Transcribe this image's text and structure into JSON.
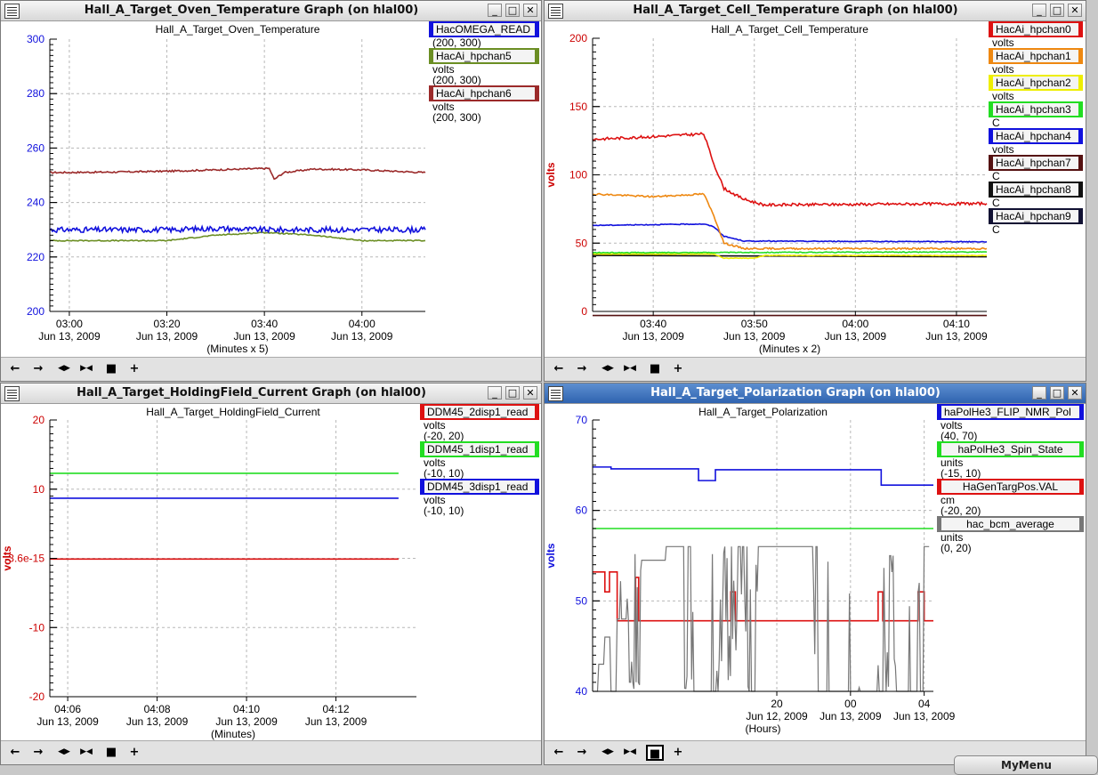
{
  "windows": [
    {
      "id": "oven",
      "title": "Hall_A_Target_Oven_Temperature Graph (on hlal00)",
      "active": false,
      "toolbar_pressed": -1,
      "legend": [
        {
          "name": "HacOMEGA_READ",
          "color": "#1111dd",
          "lines": [
            "(200, 300)"
          ]
        },
        {
          "name": "HacAi_hpchan5",
          "color": "#6b8e23",
          "lines": [
            "volts",
            "(200, 300)"
          ]
        },
        {
          "name": "HacAi_hpchan6",
          "color": "#9b2a2a",
          "lines": [
            "volts",
            "(200, 300)"
          ]
        }
      ],
      "chart_data": {
        "type": "line",
        "title": "Hall_A_Target_Oven_Temperature",
        "xlabel": "(Minutes x 5)",
        "ylabel": "",
        "ylim": [
          200,
          300
        ],
        "yticks": [
          200,
          220,
          240,
          260,
          280,
          300
        ],
        "xlim": [
          "02:56",
          "04:13"
        ],
        "xticks": [
          {
            "t": "03:00",
            "label": "03:00",
            "date": "Jun 13, 2009"
          },
          {
            "t": "03:20",
            "label": "03:20",
            "date": "Jun 13, 2009"
          },
          {
            "t": "03:40",
            "label": "03:40",
            "date": "Jun 13, 2009"
          },
          {
            "t": "04:00",
            "label": "04:00",
            "date": "Jun 13, 2009"
          }
        ],
        "grid": true,
        "series": [
          {
            "color": "#9b2a2a",
            "noise": 0.3,
            "points": [
              [
                "02:56",
                251.0
              ],
              [
                "03:10",
                251.2
              ],
              [
                "03:20",
                251.5
              ],
              [
                "03:30",
                252.0
              ],
              [
                "03:40",
                252.5
              ],
              [
                "03:41",
                252.5
              ],
              [
                "03:42",
                248.5
              ],
              [
                "03:44",
                251.0
              ],
              [
                "03:50",
                252.3
              ],
              [
                "04:00",
                252.0
              ],
              [
                "04:13",
                251.0
              ]
            ]
          },
          {
            "color": "#6b8e23",
            "noise": 0.2,
            "points": [
              [
                "02:56",
                226.0
              ],
              [
                "03:20",
                226.0
              ],
              [
                "03:30",
                228.0
              ],
              [
                "03:40",
                229.0
              ],
              [
                "03:50",
                228.0
              ],
              [
                "04:00",
                226.0
              ],
              [
                "04:13",
                226.0
              ]
            ]
          },
          {
            "color": "#1111dd",
            "noise": 1.0,
            "points": [
              [
                "02:56",
                230.0
              ],
              [
                "03:20",
                230.0
              ],
              [
                "03:30",
                230.5
              ],
              [
                "03:40",
                230.0
              ],
              [
                "04:13",
                230.0
              ]
            ]
          }
        ]
      }
    },
    {
      "id": "cell",
      "title": "Hall_A_Target_Cell_Temperature Graph (on hlal00)",
      "active": false,
      "toolbar_pressed": -1,
      "legend": [
        {
          "name": "HacAi_hpchan0",
          "color": "#dd1111",
          "lines": [
            "volts"
          ]
        },
        {
          "name": "HacAi_hpchan1",
          "color": "#ee8811",
          "lines": [
            "volts"
          ]
        },
        {
          "name": "HacAi_hpchan2",
          "color": "#eeee00",
          "lines": [
            "volts"
          ]
        },
        {
          "name": "HacAi_hpchan3",
          "color": "#22dd22",
          "lines": [
            "C"
          ]
        },
        {
          "name": "HacAi_hpchan4",
          "color": "#1111dd",
          "lines": [
            "volts"
          ]
        },
        {
          "name": "HacAi_hpchan7",
          "color": "#551111",
          "lines": [
            "C"
          ]
        },
        {
          "name": "HacAi_hpchan8",
          "color": "#111111",
          "lines": [
            "C"
          ]
        },
        {
          "name": "HacAi_hpchan9",
          "color": "#111133",
          "lines": [
            "C"
          ]
        }
      ],
      "chart_data": {
        "type": "line",
        "title": "Hall_A_Target_Cell_Temperature",
        "xlabel": "(Minutes x 2)",
        "ylabel": "volts",
        "ylabel_color": "#cc0000",
        "ytick_color": "#cc0000",
        "ylim": [
          0,
          200
        ],
        "yticks": [
          0,
          50,
          100,
          150,
          200
        ],
        "xlim": [
          "03:34",
          "04:13"
        ],
        "xticks": [
          {
            "t": "03:40",
            "label": "03:40",
            "date": "Jun 13, 2009"
          },
          {
            "t": "03:50",
            "label": "03:50",
            "date": "Jun 13, 2009"
          },
          {
            "t": "04:00",
            "label": "04:00",
            "date": "Jun 13, 2009"
          },
          {
            "t": "04:10",
            "label": "04:10",
            "date": "Jun 13, 2009"
          }
        ],
        "grid": true,
        "series": [
          {
            "color": "#111111",
            "noise": 0.0,
            "points": [
              [
                "03:34",
                41.0
              ],
              [
                "04:13",
                40.0
              ]
            ]
          },
          {
            "color": "#eeee00",
            "noise": 0.2,
            "points": [
              [
                "03:34",
                42.0
              ],
              [
                "03:46",
                42.0
              ],
              [
                "03:47",
                39.0
              ],
              [
                "03:50",
                39.0
              ],
              [
                "03:51",
                41.0
              ],
              [
                "04:13",
                41.0
              ]
            ]
          },
          {
            "color": "#22dd22",
            "noise": 0.3,
            "points": [
              [
                "03:34",
                43.0
              ],
              [
                "04:13",
                43.5
              ]
            ]
          },
          {
            "color": "#1111dd",
            "noise": 0.3,
            "points": [
              [
                "03:34",
                63.0
              ],
              [
                "03:45",
                64.0
              ],
              [
                "03:46",
                62.0
              ],
              [
                "03:47",
                55.0
              ],
              [
                "03:49",
                51.5
              ],
              [
                "04:13",
                51.0
              ]
            ]
          },
          {
            "color": "#ee8811",
            "noise": 0.6,
            "points": [
              [
                "03:34",
                86.0
              ],
              [
                "03:40",
                84.0
              ],
              [
                "03:45",
                86.0
              ],
              [
                "03:46",
                70.0
              ],
              [
                "03:47",
                50.0
              ],
              [
                "03:49",
                46.0
              ],
              [
                "04:13",
                46.0
              ]
            ]
          },
          {
            "color": "#dd1111",
            "noise": 1.0,
            "points": [
              [
                "03:34",
                126.0
              ],
              [
                "03:40",
                128.0
              ],
              [
                "03:45",
                130.0
              ],
              [
                "03:46",
                108.0
              ],
              [
                "03:47",
                90.0
              ],
              [
                "03:49",
                82.0
              ],
              [
                "03:51",
                78.0
              ],
              [
                "04:13",
                79.0
              ]
            ]
          },
          {
            "color": "#551111",
            "noise": 0.0,
            "points": [
              [
                "03:34",
                -3.0
              ],
              [
                "04:13",
                -3.0
              ]
            ]
          }
        ]
      }
    },
    {
      "id": "holding",
      "title": "Hall_A_Target_HoldingField_Current Graph (on hlal00)",
      "active": false,
      "toolbar_pressed": -1,
      "legend": [
        {
          "name": "DDM45_2disp1_read",
          "color": "#dd1111",
          "lines": [
            "volts",
            "(-20, 20)"
          ]
        },
        {
          "name": "DDM45_1disp1_read",
          "color": "#22dd22",
          "lines": [
            "volts",
            "(-10, 10)"
          ]
        },
        {
          "name": "DDM45_3disp1_read",
          "color": "#1111dd",
          "lines": [
            "volts",
            "(-10, 10)"
          ]
        }
      ],
      "chart_data": {
        "type": "line",
        "title": "Hall_A_Target_HoldingField_Current",
        "xlabel": "(Minutes)",
        "ylabel": "volts",
        "ylabel_color": "#cc0000",
        "ytick_color": "#cc0000",
        "ylim": [
          -20,
          20
        ],
        "yticks": [
          -20,
          -10,
          0,
          10,
          20
        ],
        "ytick_labels": [
          "-20",
          "-10",
          "-3.6e-15",
          "10",
          "20"
        ],
        "xlim": [
          "04:05.6",
          "04:13.8"
        ],
        "xticks": [
          {
            "t": "04:06",
            "label": "04:06",
            "date": "Jun 13, 2009"
          },
          {
            "t": "04:08",
            "label": "04:08",
            "date": "Jun 13, 2009"
          },
          {
            "t": "04:10",
            "label": "04:10",
            "date": "Jun 13, 2009"
          },
          {
            "t": "04:12",
            "label": "04:12",
            "date": "Jun 13, 2009"
          }
        ],
        "grid": true,
        "series": [
          {
            "color": "#22dd22",
            "noise": 0.0,
            "points": [
              [
                "04:05.6",
                12.3
              ],
              [
                "04:13.4",
                12.3
              ]
            ]
          },
          {
            "color": "#1111dd",
            "noise": 0.0,
            "points": [
              [
                "04:05.6",
                8.7
              ],
              [
                "04:13.4",
                8.7
              ]
            ]
          },
          {
            "color": "#dd1111",
            "noise": 0.0,
            "points": [
              [
                "04:05.6",
                -0.1
              ],
              [
                "04:13.4",
                -0.1
              ]
            ]
          }
        ]
      }
    },
    {
      "id": "polarization",
      "title": "Hall_A_Target_Polarization Graph (on hlal00)",
      "active": true,
      "toolbar_pressed": 4,
      "legend": [
        {
          "name": "haPolHe3_FLIP_NMR_Pol",
          "color": "#1111dd",
          "lines": [
            "volts",
            "(40, 70)"
          ]
        },
        {
          "name": "haPolHe3_Spin_State",
          "color": "#22dd22",
          "lines": [
            "units",
            "(-15, 10)"
          ]
        },
        {
          "name": "HaGenTargPos.VAL",
          "color": "#dd1111",
          "lines": [
            "cm",
            "(-20, 20)"
          ]
        },
        {
          "name": "hac_bcm_average",
          "color": "#777777",
          "lines": [
            "units",
            "(0, 20)"
          ]
        }
      ],
      "chart_data": {
        "type": "line",
        "title": "Hall_A_Target_Polarization",
        "xlabel": "(Hours)",
        "ylabel": "volts",
        "ylabel_color": "#1111dd",
        "ytick_color": "#1111dd",
        "ylim": [
          40,
          70
        ],
        "yticks": [
          40,
          50,
          60,
          70
        ],
        "xlim": [
          "12 10:00",
          "13 04:30"
        ],
        "xticks": [
          {
            "t": "12 20:00",
            "label": "20",
            "date": "Jun 12, 2009"
          },
          {
            "t": "13 00:00",
            "label": "00",
            "date": "Jun 13, 2009"
          },
          {
            "t": "13 04:00",
            "label": "04",
            "date": "Jun 13, 2009"
          }
        ],
        "grid": true,
        "series": [
          {
            "color": "#22dd22",
            "noise": 0.0,
            "steps": true,
            "points": [
              [
                "12 10:00",
                58.0
              ],
              [
                "13 04:30",
                58.0
              ]
            ]
          },
          {
            "color": "#1111dd",
            "noise": 0.0,
            "steps": true,
            "points": [
              [
                "12 10:00",
                64.8
              ],
              [
                "12 11:00",
                64.6
              ],
              [
                "12 15:45",
                63.3
              ],
              [
                "12 16:40",
                64.5
              ],
              [
                "12 22:00",
                64.5
              ],
              [
                "13 01:40",
                62.8
              ],
              [
                "13 04:30",
                62.8
              ]
            ]
          },
          {
            "color": "#dd1111",
            "noise": 0.0,
            "steps": true,
            "points": [
              [
                "12 10:00",
                53.2
              ],
              [
                "12 10:40",
                51.0
              ],
              [
                "12 10:55",
                53.2
              ],
              [
                "12 11:20",
                47.8
              ],
              [
                "12 12:20",
                52.6
              ],
              [
                "12 12:30",
                47.8
              ],
              [
                "12 17:30",
                51.0
              ],
              [
                "12 17:45",
                47.8
              ],
              [
                "13 01:30",
                51.0
              ],
              [
                "13 01:45",
                47.8
              ],
              [
                "13 03:40",
                51.0
              ],
              [
                "13 04:00",
                47.8
              ],
              [
                "13 04:30",
                47.8
              ]
            ]
          },
          {
            "color": "#777777",
            "noise": 0.0,
            "hac": true,
            "points": [
              [
                "12 10:00",
                40.0
              ],
              [
                "12 10:20",
                43.0
              ],
              [
                "12 10:40",
                46.0
              ],
              [
                "12 11:00",
                40.0
              ],
              [
                "12 11:20",
                48.0
              ],
              [
                "12 12:00",
                41.0
              ],
              [
                "12 12:40",
                54.5
              ],
              [
                "12 14:00",
                56.0
              ],
              [
                "12 15:00",
                56.0
              ],
              [
                "12 15:30",
                40.0
              ],
              [
                "12 16:30",
                40.0
              ],
              [
                "12 17:00",
                56.0
              ],
              [
                "12 18:30",
                40.0
              ],
              [
                "12 19:00",
                56.0
              ],
              [
                "12 22:00",
                56.0
              ],
              [
                "12 22:15",
                40.0
              ],
              [
                "13 01:00",
                40.0
              ],
              [
                "13 01:30",
                40.0
              ],
              [
                "13 02:00",
                55.0
              ],
              [
                "13 02:30",
                40.0
              ],
              [
                "13 03:40",
                40.0
              ],
              [
                "13 04:00",
                56.0
              ],
              [
                "13 04:20",
                55.5
              ]
            ]
          }
        ]
      }
    }
  ],
  "taskbar": {
    "label": "MyMenu"
  }
}
